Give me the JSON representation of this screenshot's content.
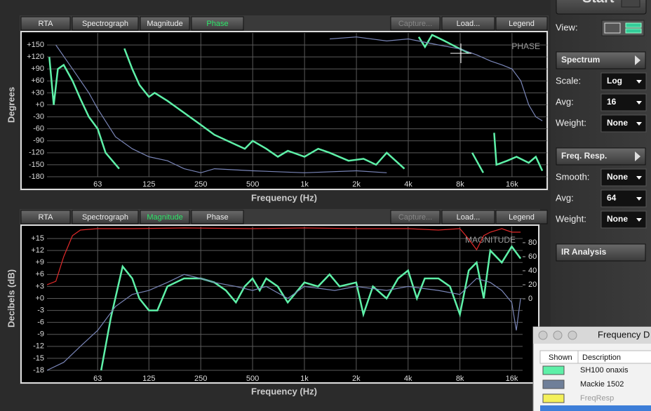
{
  "chart_data": [
    {
      "type": "line",
      "annotation": "PHASE",
      "x_label": "Frequency (Hz)",
      "y_label": "Degrees",
      "tabs": [
        "RTA",
        "Spectrograph",
        "Magnitude",
        "Phase",
        "Capture...",
        "Load...",
        "Legend"
      ],
      "active_tab": 3,
      "xscale": "log",
      "xlim": [
        32,
        25600
      ],
      "xticks": [
        63,
        125,
        250,
        500,
        {
          "value": 1000,
          "label": "1k"
        },
        {
          "value": 2000,
          "label": "2k"
        },
        {
          "value": 4000,
          "label": "4k"
        },
        {
          "value": 8000,
          "label": "8k"
        },
        {
          "value": 16000,
          "label": "16k"
        }
      ],
      "ylim": [
        -180,
        180
      ],
      "yticks": [
        {
          "value": 150,
          "label": "+150"
        },
        {
          "value": 120,
          "label": "+120"
        },
        {
          "value": 90,
          "label": "+90"
        },
        {
          "value": 60,
          "label": "+60"
        },
        {
          "value": 30,
          "label": "+30"
        },
        {
          "value": 0,
          "label": "+0"
        },
        -30,
        -60,
        -90,
        -120,
        -150,
        -180
      ],
      "grid": true,
      "series": [
        {
          "color": "#5ef0a8",
          "x": [
            33,
            35,
            37,
            40,
            45,
            50,
            56,
            63,
            70,
            84,
            84,
            90,
            100,
            110,
            125,
            135,
            160,
            200,
            250,
            300,
            400,
            450,
            500,
            600,
            700,
            800,
            1000,
            1200,
            1400,
            1800,
            2200,
            2600,
            3000,
            3800,
            3800,
            4600,
            5000,
            5500,
            6500,
            8000,
            9000,
            9000,
            9400,
            10900,
            10900,
            12600,
            13000,
            15000,
            17000,
            20000,
            22000,
            24000
          ],
          "values": [
            120,
            0,
            90,
            100,
            60,
            15,
            -30,
            -60,
            -120,
            -160,
            null,
            141,
            90,
            50,
            20,
            30,
            10,
            -20,
            -50,
            -75,
            -100,
            -110,
            -90,
            -110,
            -130,
            -115,
            -130,
            -110,
            -120,
            -140,
            -135,
            -150,
            -120,
            -160,
            null,
            170,
            145,
            175,
            160,
            140,
            130,
            null,
            -120,
            -170,
            null,
            -70,
            -150,
            -140,
            -130,
            -145,
            -130,
            -165
          ]
        },
        {
          "color": "#7a86b8",
          "x": [
            36,
            45,
            56,
            63,
            80,
            100,
            125,
            160,
            200,
            250,
            300,
            500,
            1000,
            2000,
            3000,
            3000,
            1400,
            2000,
            3000,
            4000,
            6000,
            8000,
            10000,
            12000,
            14000,
            16000,
            18000,
            20000,
            22000,
            24000
          ],
          "values": [
            150,
            90,
            30,
            -10,
            -80,
            -110,
            -130,
            -140,
            -160,
            -170,
            -160,
            -165,
            -170,
            -165,
            -170,
            null,
            165,
            170,
            160,
            165,
            150,
            140,
            125,
            110,
            100,
            90,
            60,
            0,
            -30,
            -40
          ]
        }
      ]
    },
    {
      "type": "line",
      "annotation": "MAGNITUDE",
      "x_label": "Frequency (Hz)",
      "y_label": "Decibels (dB)",
      "tabs": [
        "RTA",
        "Spectrograph",
        "Magnitude",
        "Phase",
        "Capture...",
        "Load...",
        "Legend"
      ],
      "active_tab": 2,
      "xscale": "log",
      "xlim": [
        32,
        18500
      ],
      "xticks": [
        63,
        125,
        250,
        500,
        {
          "value": 1000,
          "label": "1k"
        },
        {
          "value": 2000,
          "label": "2k"
        },
        {
          "value": 4000,
          "label": "4k"
        },
        {
          "value": 8000,
          "label": "8k"
        },
        {
          "value": 16000,
          "label": "16k"
        }
      ],
      "ylim": [
        -18,
        18
      ],
      "yticks": [
        {
          "value": 15,
          "label": "+15"
        },
        {
          "value": 12,
          "label": "+12"
        },
        {
          "value": 9,
          "label": "+9"
        },
        {
          "value": 6,
          "label": "+6"
        },
        {
          "value": 3,
          "label": "+3"
        },
        {
          "value": 0,
          "label": "+0"
        },
        -3,
        -6,
        -9,
        -12,
        -15,
        -18
      ],
      "y2lim": [
        -102,
        103
      ],
      "y2ticks": [
        80,
        60,
        40,
        20,
        0
      ],
      "grid": true,
      "series": [
        {
          "color": "#5ef0a8",
          "x": [
            66,
            75,
            88,
            100,
            110,
            125,
            140,
            160,
            200,
            250,
            300,
            350,
            400,
            450,
            500,
            550,
            600,
            700,
            800,
            1000,
            1200,
            1400,
            1600,
            2000,
            2200,
            2500,
            3000,
            3500,
            4000,
            4500,
            5000,
            6000,
            7000,
            8000,
            9000,
            10000,
            11000,
            12000,
            14000,
            16000,
            18000
          ],
          "values": [
            -18,
            -5,
            8,
            5,
            0,
            -3,
            -3,
            3,
            5,
            5,
            4,
            2,
            -1,
            3,
            5,
            2,
            5,
            3,
            -1,
            4,
            3,
            6,
            3,
            4,
            -4,
            3,
            0,
            5,
            7,
            0,
            5,
            5,
            3,
            -4,
            7,
            9,
            0,
            12,
            9,
            13,
            10
          ]
        },
        {
          "color": "#7a86b8",
          "x": [
            32,
            40,
            50,
            63,
            80,
            100,
            125,
            160,
            200,
            250,
            300,
            400,
            500,
            600,
            800,
            1000,
            1500,
            2000,
            3000,
            4000,
            6000,
            8000,
            10000,
            12000,
            14000,
            16000,
            17000,
            18000
          ],
          "values": [
            -18,
            -16,
            -12,
            -8,
            -2,
            1,
            2,
            4,
            6,
            5,
            4,
            3,
            2,
            3,
            0,
            3,
            2,
            3,
            2,
            3,
            2,
            1,
            5,
            4,
            2,
            -1,
            -8,
            0
          ]
        },
        {
          "color": "#e02a2a",
          "axis": "y2",
          "x": [
            32,
            36,
            40,
            45,
            50,
            63,
            100,
            200,
            500,
            1000,
            2000,
            4000,
            6000,
            8000,
            9000,
            10000,
            11000,
            12000,
            14000,
            16000,
            18000
          ],
          "values": [
            20,
            25,
            60,
            90,
            98,
            100,
            100,
            101,
            100,
            101,
            100,
            100,
            98,
            100,
            85,
            70,
            90,
            95,
            100,
            95,
            95
          ]
        }
      ]
    }
  ],
  "ui": {
    "start": "Start",
    "view_label": "View:",
    "spectrum": "Spectrum",
    "spectrum_rows": [
      {
        "label": "Scale:",
        "value": "Log"
      },
      {
        "label": "Avg:",
        "value": "16"
      },
      {
        "label": "Weight:",
        "value": "None"
      }
    ],
    "freq_resp": "Freq. Resp.",
    "freq_rows": [
      {
        "label": "Smooth:",
        "value": "None"
      },
      {
        "label": "Avg:",
        "value": "64"
      },
      {
        "label": "Weight:",
        "value": "None"
      }
    ],
    "ir_analysis": "IR Analysis",
    "window": {
      "title": "Frequency D",
      "columns": [
        "Shown",
        "Description"
      ],
      "rows": [
        {
          "label": "SH100 onaxis",
          "color": "#5ef0a8"
        },
        {
          "label": "Mackie 1502",
          "color": "#6f7f99"
        },
        {
          "label": "FreqResp",
          "color": "#f4f05a"
        }
      ]
    }
  }
}
